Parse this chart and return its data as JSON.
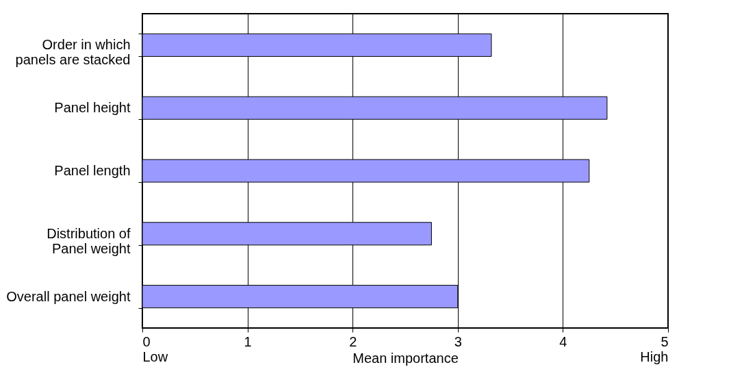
{
  "chart_data": {
    "type": "bar",
    "orientation": "horizontal",
    "xlabel": "Mean importance",
    "categories": [
      "Order in which panels are stacked",
      "Panel height",
      "Panel length",
      "Distribution of Panel weight",
      "Overall panel weight"
    ],
    "values": [
      3.32,
      4.42,
      4.25,
      2.75,
      3.0
    ],
    "color": "#9999ff",
    "xlim": [
      0,
      5
    ],
    "xticks": [
      {
        "value": 0,
        "label": "0\nLow"
      },
      1,
      2,
      3,
      4,
      {
        "value": 5,
        "label": "5\nHigh"
      }
    ],
    "grid": "x"
  }
}
